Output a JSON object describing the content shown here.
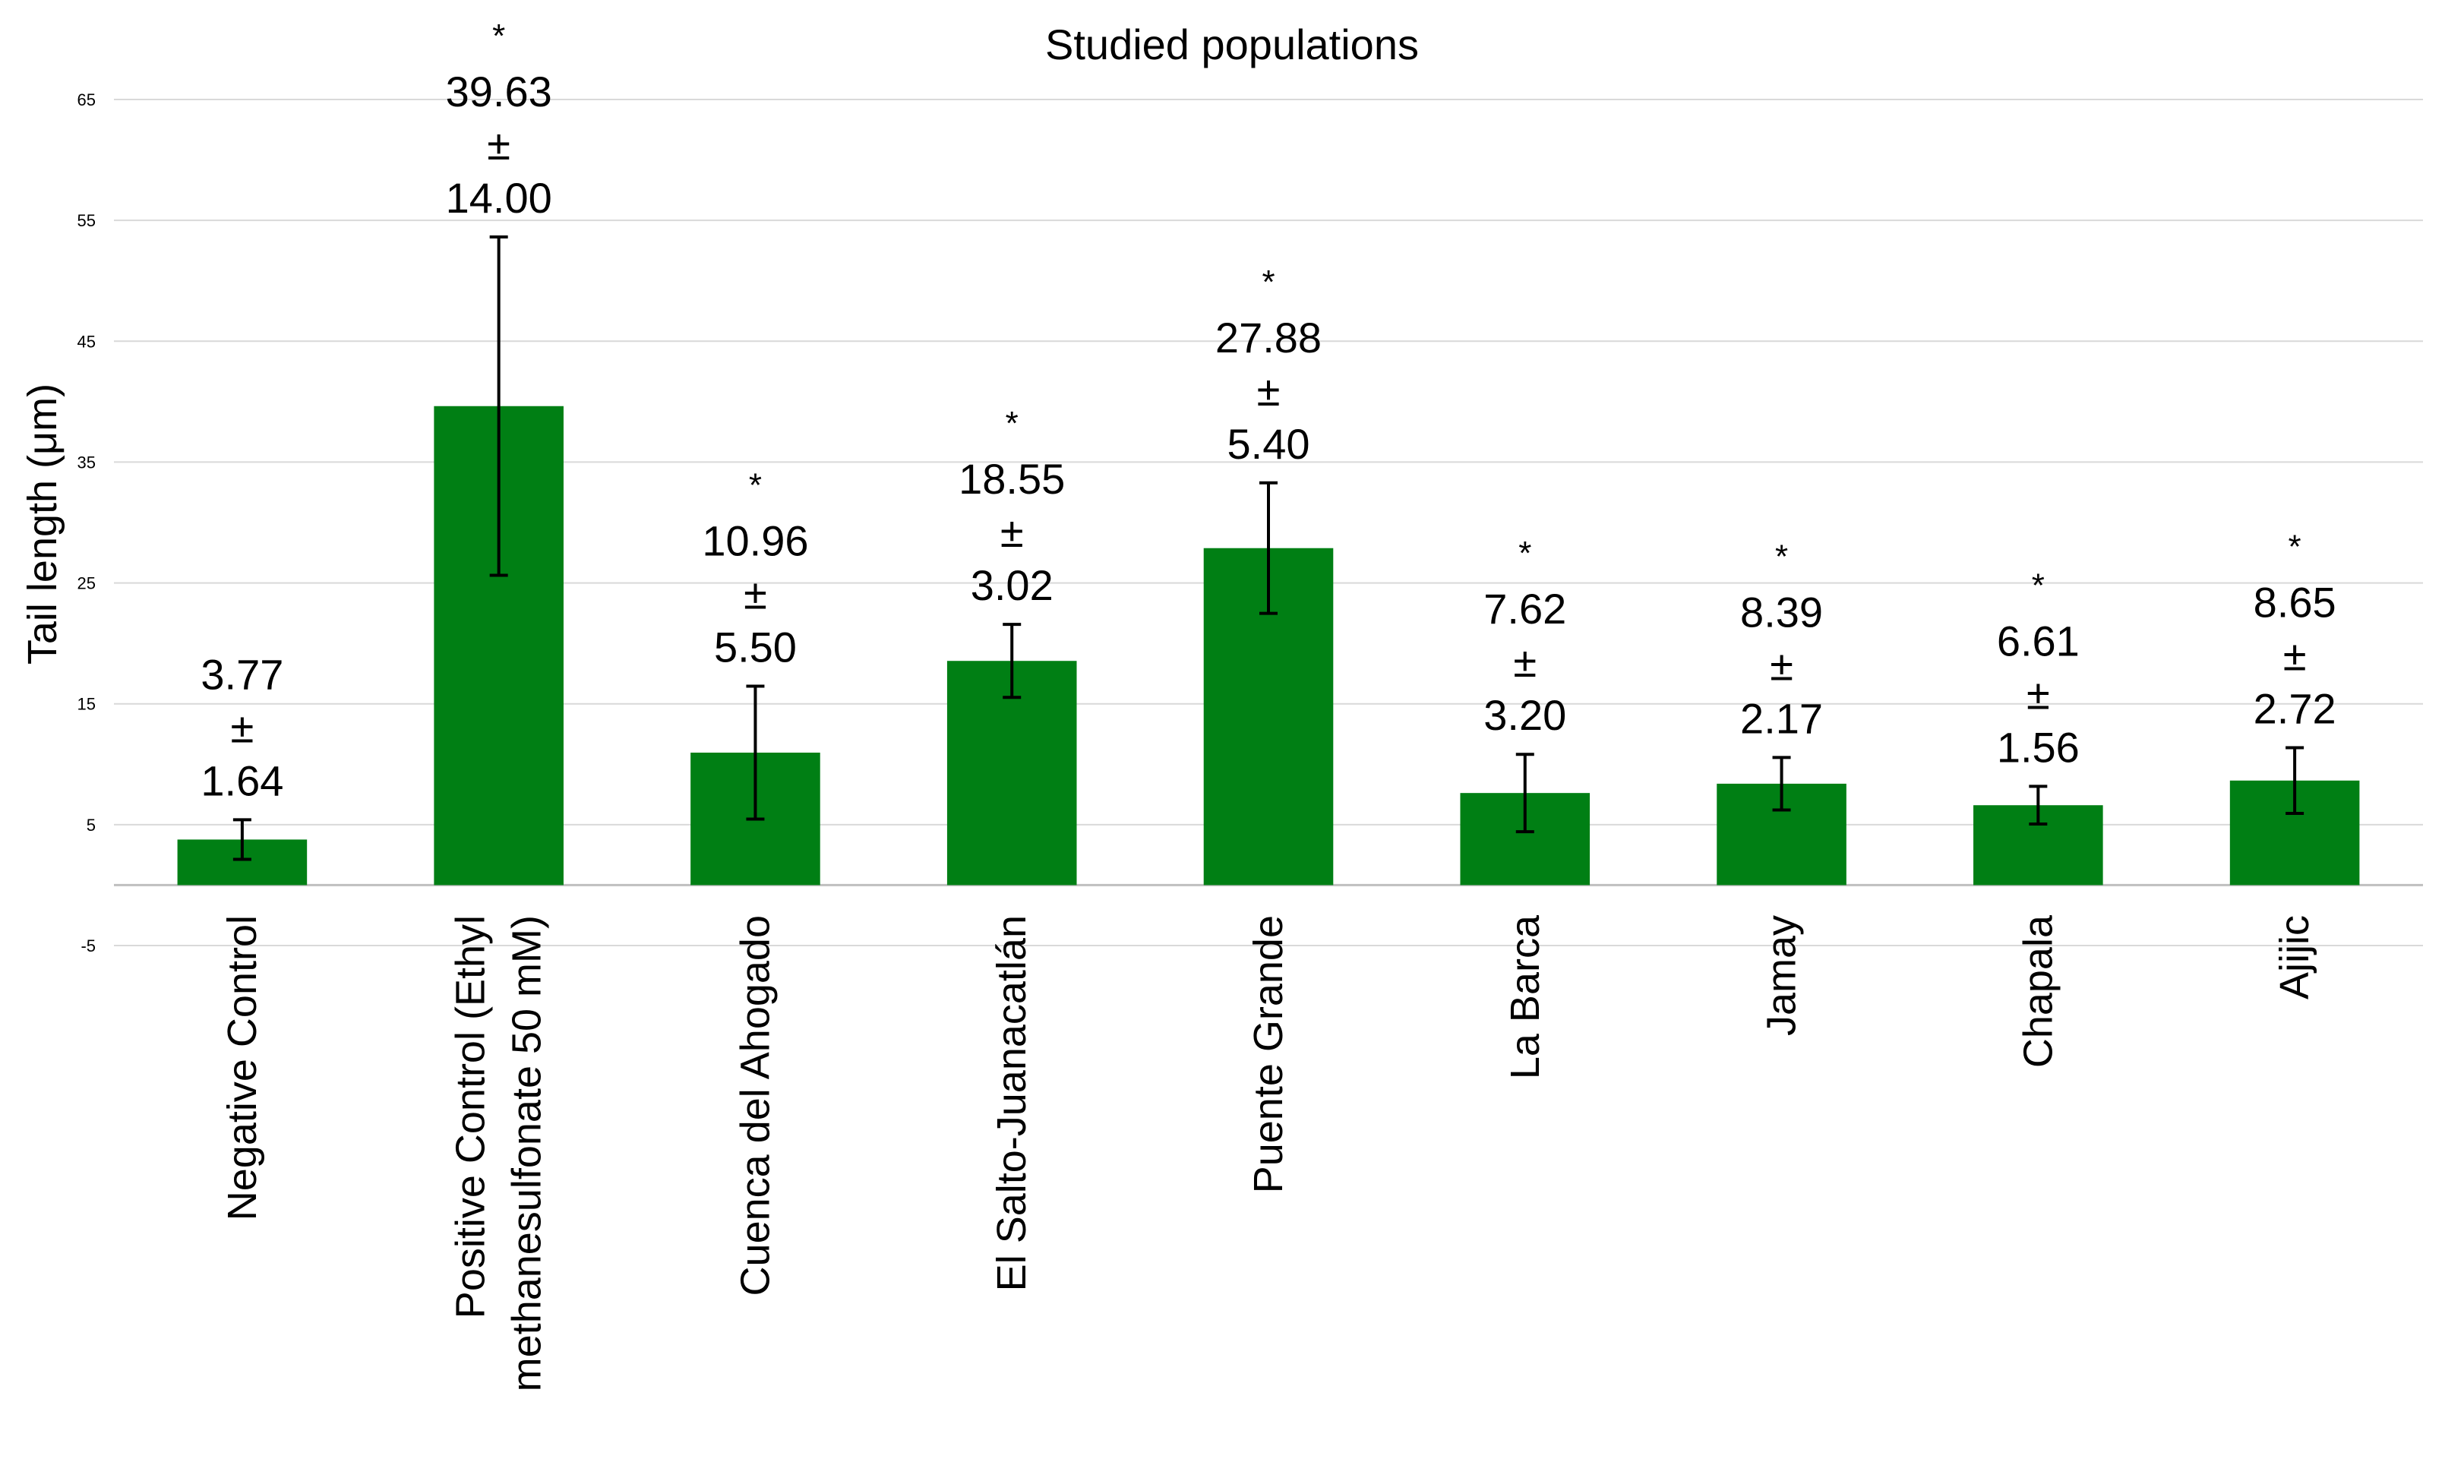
{
  "chart_data": {
    "type": "bar",
    "title": "Studied populations",
    "xlabel": "",
    "ylabel": "Tail length (μm)",
    "ylim": [
      -5,
      65
    ],
    "yticks": [
      -5,
      5,
      15,
      25,
      35,
      45,
      55,
      65
    ],
    "grid": true,
    "legend": "none",
    "colors": {
      "bar": "#007F14",
      "grid": "#D9D9D9",
      "axis": "#BFBFBF",
      "error": "#000000"
    },
    "categories": [
      [
        "Negative Control"
      ],
      [
        "Positive Control (Ethyl",
        "methanesulfonate 50 mM)"
      ],
      [
        "Cuenca del Ahogado"
      ],
      [
        "El Salto-Juanacatlán"
      ],
      [
        "Puente Grande"
      ],
      [
        "La Barca"
      ],
      [
        "Jamay"
      ],
      [
        "Chapala"
      ],
      [
        "Ajijic"
      ]
    ],
    "values": [
      3.77,
      39.63,
      10.96,
      18.55,
      27.88,
      7.62,
      8.39,
      6.61,
      8.65
    ],
    "errors": [
      1.64,
      14.0,
      5.5,
      3.02,
      5.4,
      3.2,
      2.17,
      1.56,
      2.72
    ],
    "value_labels": [
      "3.77",
      "39.63",
      "10.96",
      "18.55",
      "27.88",
      "7.62",
      "8.39",
      "6.61",
      "8.65"
    ],
    "error_labels": [
      "1.64",
      "14.00",
      "5.50",
      "3.02",
      "5.40",
      "3.20",
      "2.17",
      "1.56",
      "2.72"
    ],
    "plus_minus": "±",
    "significance": [
      "",
      "*",
      "*",
      "*",
      "*",
      "*",
      "*",
      "*",
      "*"
    ]
  }
}
